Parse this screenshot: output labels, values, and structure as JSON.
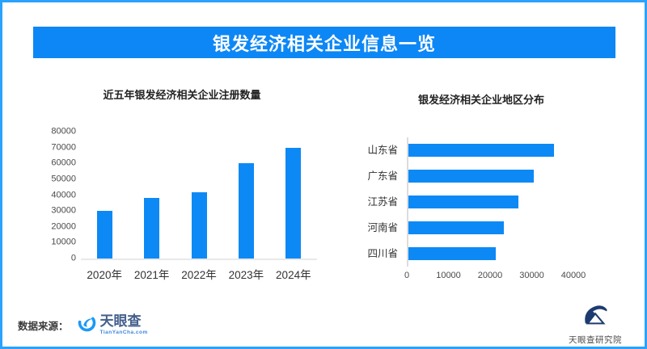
{
  "header": {
    "title": "银发经济相关企业信息一览"
  },
  "colors": {
    "accent_blue": "#0d87f5",
    "border_blue": "#2ba2fe",
    "bar_blue": "#0d89f6",
    "tyc_icon_blue": "#1b9af7",
    "research_navy": "#1e3b70"
  },
  "chart_data": [
    {
      "type": "bar",
      "orientation": "vertical",
      "title": "近五年银发经济相关企业注册数量",
      "categories": [
        "2020年",
        "2021年",
        "2022年",
        "2023年",
        "2024年"
      ],
      "values": [
        30000,
        38000,
        42000,
        60000,
        70000
      ],
      "ylim": [
        0,
        80000
      ],
      "yticks": [
        0,
        10000,
        20000,
        30000,
        40000,
        50000,
        60000,
        70000,
        80000
      ],
      "grid": false,
      "legend": false,
      "bar_color": "#0d89f6"
    },
    {
      "type": "bar",
      "orientation": "horizontal",
      "title": "银发经济相关企业地区分布",
      "categories": [
        "山东省",
        "广东省",
        "江苏省",
        "河南省",
        "四川省"
      ],
      "values": [
        35000,
        30000,
        26500,
        23000,
        21000
      ],
      "xlim": [
        0,
        40000
      ],
      "xticks": [
        0,
        10000,
        20000,
        30000,
        40000
      ],
      "grid": false,
      "legend": false,
      "bar_color": "#0d89f6"
    }
  ],
  "footer": {
    "source_label": "数据来源：",
    "tianyancha_logo_text": "天眼查",
    "tianyancha_logo_sub": "TianYanCha.com",
    "research_logo_text": "天眼查研究院"
  }
}
